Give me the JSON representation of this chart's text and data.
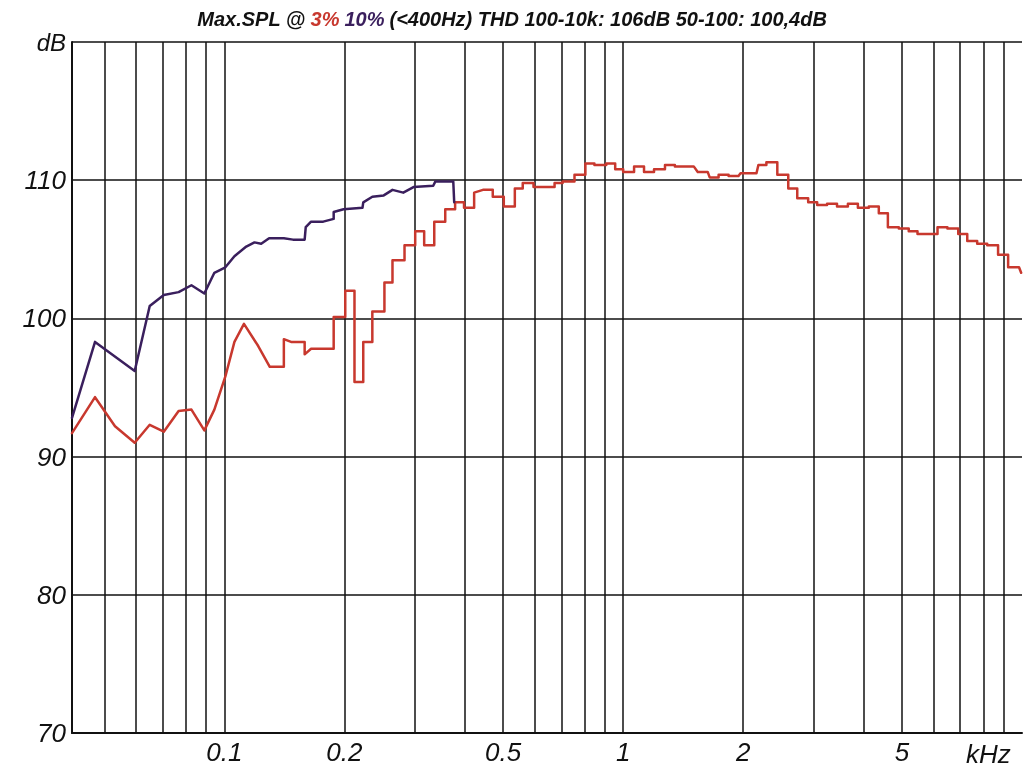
{
  "chart_data": {
    "type": "line",
    "title": "Max.SPL @",
    "subtitle": "(<400Hz) THD 100-10k: 106dB 50-100: 100,4dB",
    "ylabel": "dB",
    "xlabel": "kHz",
    "log": "x",
    "grid": true,
    "legend": "top",
    "marker": "none",
    "line_style": "solid",
    "xlim": [
      0.0415,
      10
    ],
    "ylim": [
      70,
      120
    ],
    "xticks": [
      {
        "value": 0.05,
        "label": null
      },
      {
        "value": 0.06,
        "label": null
      },
      {
        "value": 0.07,
        "label": null
      },
      {
        "value": 0.08,
        "label": null
      },
      {
        "value": 0.09,
        "label": null
      },
      0.1,
      0.2,
      {
        "value": 0.3,
        "label": null
      },
      {
        "value": 0.4,
        "label": null
      },
      0.5,
      {
        "value": 0.6,
        "label": null
      },
      {
        "value": 0.7,
        "label": null
      },
      {
        "value": 0.8,
        "label": null
      },
      {
        "value": 0.9,
        "label": null
      },
      1,
      2,
      {
        "value": 3,
        "label": null
      },
      {
        "value": 4,
        "label": null
      },
      5,
      {
        "value": 6,
        "label": null
      },
      {
        "value": 7,
        "label": null
      },
      {
        "value": 8,
        "label": null
      },
      {
        "value": 9,
        "label": null
      }
    ],
    "yticks": [
      70,
      80,
      90,
      100,
      110,
      {
        "value": 120,
        "label": null
      }
    ],
    "series": [
      {
        "name": "3%",
        "color": "#c8382e",
        "x": [
          0.0415,
          0.0474,
          0.0532,
          0.0596,
          0.065,
          0.0705,
          0.0768,
          0.0827,
          0.0891,
          0.0944,
          0.1006,
          0.106,
          0.112,
          0.1216,
          0.13,
          0.141,
          0.141,
          0.147,
          0.159,
          0.159,
          0.165,
          0.188,
          0.188,
          0.201,
          0.201,
          0.212,
          0.212,
          0.223,
          0.223,
          0.235,
          0.235,
          0.252,
          0.252,
          0.264,
          0.264,
          0.283,
          0.283,
          0.301,
          0.301,
          0.317,
          0.317,
          0.336,
          0.336,
          0.358,
          0.358,
          0.379,
          0.379,
          0.399,
          0.399,
          0.423,
          0.423,
          0.445,
          0.471,
          0.471,
          0.502,
          0.502,
          0.535,
          0.535,
          0.56,
          0.56,
          0.596,
          0.596,
          0.673,
          0.673,
          0.705,
          0.705,
          0.755,
          0.755,
          0.804,
          0.804,
          0.847,
          0.847,
          0.907,
          0.907,
          0.955,
          0.955,
          1.0,
          1.0,
          1.065,
          1.065,
          1.128,
          1.128,
          1.195,
          1.195,
          1.273,
          1.273,
          1.348,
          1.348,
          1.503,
          1.538,
          1.629,
          1.648,
          1.735,
          1.735,
          1.838,
          1.838,
          1.946,
          1.969,
          2.159,
          2.183,
          2.286,
          2.286,
          2.435,
          2.435,
          2.594,
          2.594,
          2.732,
          2.732,
          2.91,
          2.91,
          3.065,
          3.065,
          3.245,
          3.245,
          3.437,
          3.437,
          3.66,
          3.66,
          3.877,
          3.877,
          4.13,
          4.13,
          4.375,
          4.375,
          4.61,
          4.61,
          4.91,
          4.91,
          5.2,
          5.2,
          5.47,
          5.47,
          6.14,
          6.14,
          6.5,
          6.5,
          6.92,
          6.92,
          7.29,
          7.29,
          7.72,
          7.72,
          8.18,
          8.18,
          8.71,
          8.71,
          9.23,
          9.23,
          9.83,
          9.95
        ],
        "values": [
          91.7,
          94.3,
          92.2,
          91.0,
          92.3,
          91.8,
          93.3,
          93.4,
          91.9,
          93.4,
          95.8,
          98.3,
          99.6,
          98.0,
          96.5,
          96.5,
          98.5,
          98.3,
          98.3,
          97.4,
          97.8,
          97.8,
          100.1,
          100.1,
          102.0,
          102.0,
          95.4,
          95.4,
          98.3,
          98.3,
          100.5,
          100.5,
          102.6,
          102.6,
          104.2,
          104.2,
          105.3,
          105.3,
          106.3,
          106.3,
          105.3,
          105.3,
          107.0,
          107.0,
          107.9,
          107.9,
          108.4,
          108.4,
          108.0,
          108.0,
          109.1,
          109.3,
          109.3,
          108.8,
          108.8,
          108.1,
          108.1,
          109.4,
          109.4,
          109.8,
          109.8,
          109.5,
          109.5,
          109.8,
          109.8,
          109.9,
          109.9,
          110.4,
          110.4,
          111.2,
          111.2,
          111.1,
          111.1,
          111.2,
          111.2,
          110.8,
          110.8,
          110.6,
          110.6,
          111.0,
          111.0,
          110.6,
          110.6,
          110.8,
          110.8,
          111.1,
          111.1,
          111.0,
          111.0,
          110.6,
          110.6,
          110.2,
          110.2,
          110.4,
          110.4,
          110.3,
          110.3,
          110.5,
          110.5,
          111.1,
          111.1,
          111.3,
          111.3,
          110.4,
          110.4,
          109.4,
          109.4,
          108.7,
          108.7,
          108.4,
          108.4,
          108.2,
          108.2,
          108.3,
          108.3,
          108.1,
          108.1,
          108.3,
          108.3,
          108.0,
          108.0,
          108.1,
          108.1,
          107.6,
          107.6,
          106.6,
          106.6,
          106.5,
          106.5,
          106.3,
          106.3,
          106.1,
          106.1,
          106.6,
          106.6,
          106.5,
          106.5,
          106.1,
          106.1,
          105.6,
          105.6,
          105.4,
          105.4,
          105.3,
          105.3,
          104.6,
          104.6,
          103.7,
          103.7,
          103.3
        ]
      },
      {
        "name": "10%",
        "color": "#3a1f5d",
        "x": [
          0.0415,
          0.0474,
          0.0596,
          0.065,
          0.0705,
          0.0768,
          0.0827,
          0.0891,
          0.0944,
          0.1006,
          0.106,
          0.1135,
          0.119,
          0.1237,
          0.1295,
          0.141,
          0.1486,
          0.159,
          0.16,
          0.165,
          0.177,
          0.188,
          0.188,
          0.199,
          0.222,
          0.223,
          0.235,
          0.251,
          0.264,
          0.281,
          0.298,
          0.334,
          0.338,
          0.375,
          0.377
        ],
        "values": [
          92.8,
          98.3,
          96.2,
          100.9,
          101.7,
          101.9,
          102.4,
          101.8,
          103.3,
          103.7,
          104.5,
          105.2,
          105.5,
          105.4,
          105.8,
          105.8,
          105.7,
          105.7,
          106.6,
          107.0,
          107.0,
          107.2,
          107.7,
          107.9,
          108.0,
          108.4,
          108.8,
          108.9,
          109.3,
          109.1,
          109.5,
          109.6,
          109.9,
          109.9,
          108.4
        ]
      }
    ]
  }
}
